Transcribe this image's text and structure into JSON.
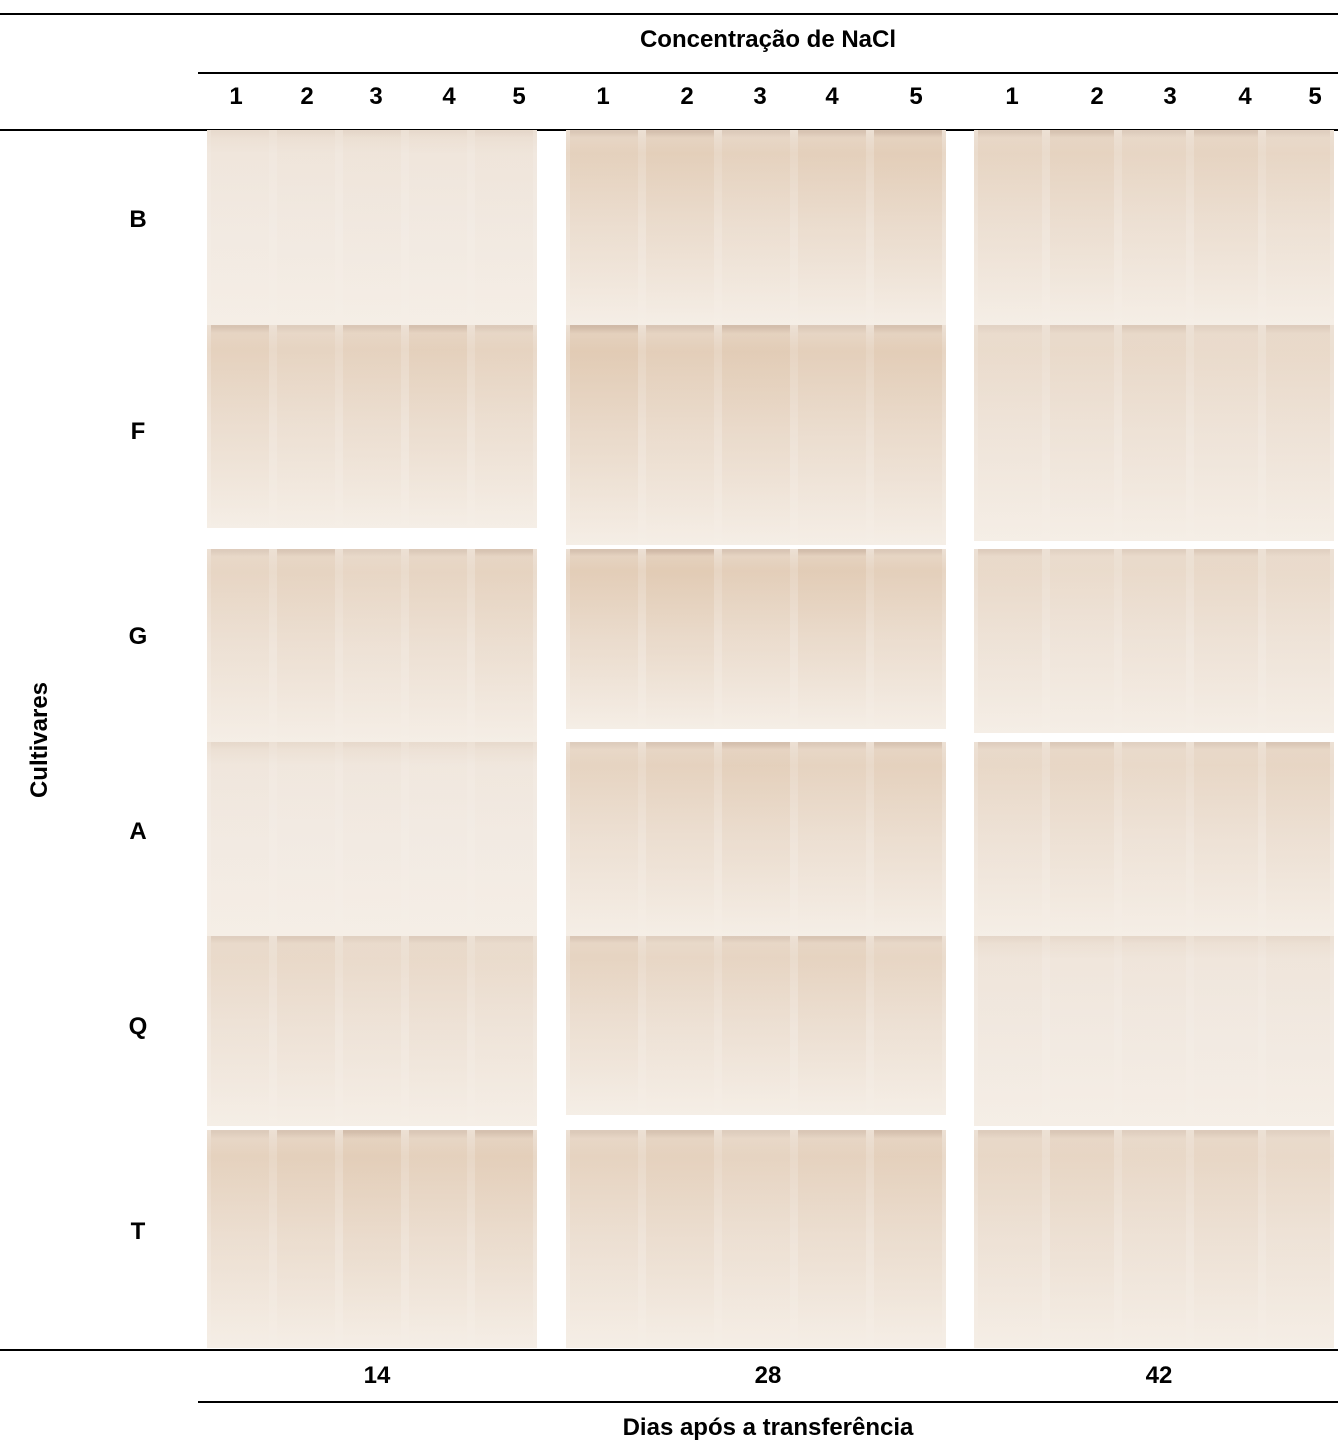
{
  "header": {
    "title": "Concentração de NaCl",
    "lanes": [
      [
        1,
        2,
        3,
        4,
        5
      ],
      [
        1,
        2,
        3,
        4,
        5
      ],
      [
        1,
        2,
        3,
        4,
        5
      ]
    ]
  },
  "rows": {
    "title": "Cultivares",
    "labels": [
      "B",
      "F",
      "G",
      "A",
      "Q",
      "T"
    ]
  },
  "footer": {
    "days": [
      14,
      28,
      42
    ],
    "title": "Dias após a transferência"
  }
}
